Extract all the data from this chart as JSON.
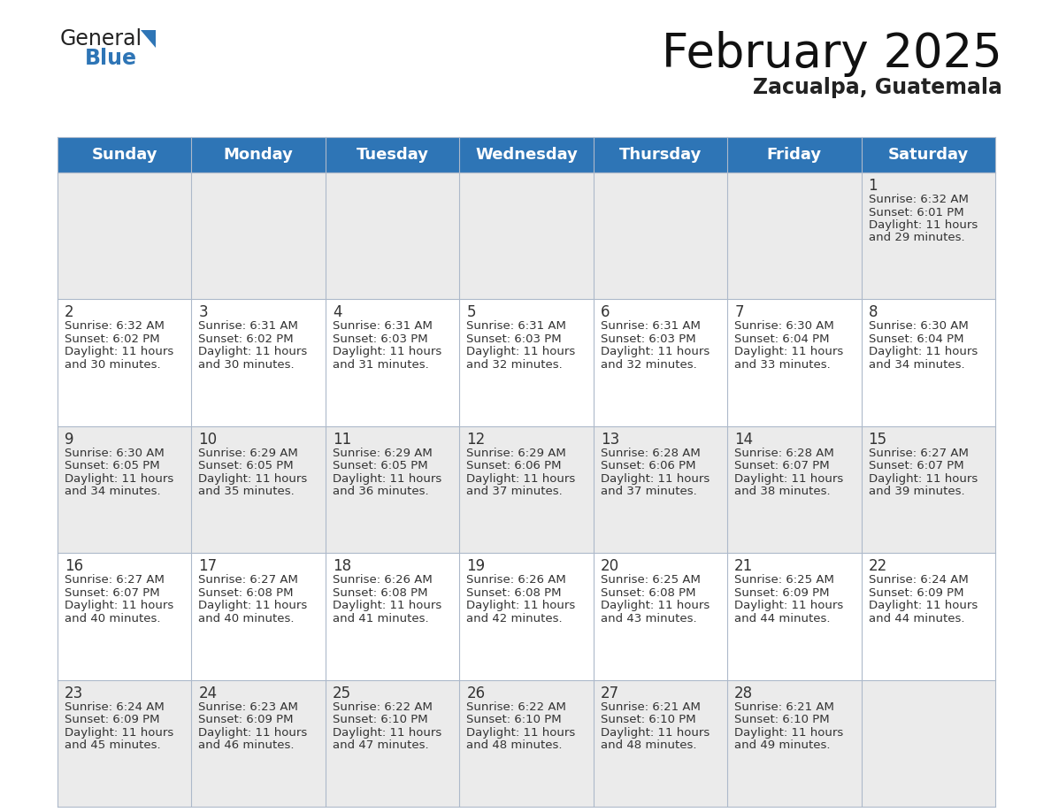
{
  "title": "February 2025",
  "subtitle": "Zacualpa, Guatemala",
  "header_color": "#2e75b6",
  "header_text_color": "#ffffff",
  "background_color": "#ffffff",
  "cell_bg_row0": "#ebebeb",
  "cell_bg_row1": "#ffffff",
  "cell_bg_row2": "#ebebeb",
  "cell_bg_row3": "#ffffff",
  "cell_bg_row4": "#ebebeb",
  "grid_line_color": "#adb9ca",
  "text_color": "#333333",
  "day_headers": [
    "Sunday",
    "Monday",
    "Tuesday",
    "Wednesday",
    "Thursday",
    "Friday",
    "Saturday"
  ],
  "title_fontsize": 38,
  "subtitle_fontsize": 17,
  "header_fontsize": 13,
  "day_num_fontsize": 12,
  "cell_text_fontsize": 9.5,
  "logo_general_fontsize": 17,
  "logo_blue_fontsize": 17,
  "logo_triangle_color": "#2e75b6",
  "logo_general_color": "#222222",
  "logo_blue_color": "#2e75b6",
  "days": [
    {
      "day": 1,
      "col": 6,
      "row": 0,
      "sunrise": "6:32 AM",
      "sunset": "6:01 PM",
      "daylight_hours": 11,
      "daylight_minutes": 29
    },
    {
      "day": 2,
      "col": 0,
      "row": 1,
      "sunrise": "6:32 AM",
      "sunset": "6:02 PM",
      "daylight_hours": 11,
      "daylight_minutes": 30
    },
    {
      "day": 3,
      "col": 1,
      "row": 1,
      "sunrise": "6:31 AM",
      "sunset": "6:02 PM",
      "daylight_hours": 11,
      "daylight_minutes": 30
    },
    {
      "day": 4,
      "col": 2,
      "row": 1,
      "sunrise": "6:31 AM",
      "sunset": "6:03 PM",
      "daylight_hours": 11,
      "daylight_minutes": 31
    },
    {
      "day": 5,
      "col": 3,
      "row": 1,
      "sunrise": "6:31 AM",
      "sunset": "6:03 PM",
      "daylight_hours": 11,
      "daylight_minutes": 32
    },
    {
      "day": 6,
      "col": 4,
      "row": 1,
      "sunrise": "6:31 AM",
      "sunset": "6:03 PM",
      "daylight_hours": 11,
      "daylight_minutes": 32
    },
    {
      "day": 7,
      "col": 5,
      "row": 1,
      "sunrise": "6:30 AM",
      "sunset": "6:04 PM",
      "daylight_hours": 11,
      "daylight_minutes": 33
    },
    {
      "day": 8,
      "col": 6,
      "row": 1,
      "sunrise": "6:30 AM",
      "sunset": "6:04 PM",
      "daylight_hours": 11,
      "daylight_minutes": 34
    },
    {
      "day": 9,
      "col": 0,
      "row": 2,
      "sunrise": "6:30 AM",
      "sunset": "6:05 PM",
      "daylight_hours": 11,
      "daylight_minutes": 34
    },
    {
      "day": 10,
      "col": 1,
      "row": 2,
      "sunrise": "6:29 AM",
      "sunset": "6:05 PM",
      "daylight_hours": 11,
      "daylight_minutes": 35
    },
    {
      "day": 11,
      "col": 2,
      "row": 2,
      "sunrise": "6:29 AM",
      "sunset": "6:05 PM",
      "daylight_hours": 11,
      "daylight_minutes": 36
    },
    {
      "day": 12,
      "col": 3,
      "row": 2,
      "sunrise": "6:29 AM",
      "sunset": "6:06 PM",
      "daylight_hours": 11,
      "daylight_minutes": 37
    },
    {
      "day": 13,
      "col": 4,
      "row": 2,
      "sunrise": "6:28 AM",
      "sunset": "6:06 PM",
      "daylight_hours": 11,
      "daylight_minutes": 37
    },
    {
      "day": 14,
      "col": 5,
      "row": 2,
      "sunrise": "6:28 AM",
      "sunset": "6:07 PM",
      "daylight_hours": 11,
      "daylight_minutes": 38
    },
    {
      "day": 15,
      "col": 6,
      "row": 2,
      "sunrise": "6:27 AM",
      "sunset": "6:07 PM",
      "daylight_hours": 11,
      "daylight_minutes": 39
    },
    {
      "day": 16,
      "col": 0,
      "row": 3,
      "sunrise": "6:27 AM",
      "sunset": "6:07 PM",
      "daylight_hours": 11,
      "daylight_minutes": 40
    },
    {
      "day": 17,
      "col": 1,
      "row": 3,
      "sunrise": "6:27 AM",
      "sunset": "6:08 PM",
      "daylight_hours": 11,
      "daylight_minutes": 40
    },
    {
      "day": 18,
      "col": 2,
      "row": 3,
      "sunrise": "6:26 AM",
      "sunset": "6:08 PM",
      "daylight_hours": 11,
      "daylight_minutes": 41
    },
    {
      "day": 19,
      "col": 3,
      "row": 3,
      "sunrise": "6:26 AM",
      "sunset": "6:08 PM",
      "daylight_hours": 11,
      "daylight_minutes": 42
    },
    {
      "day": 20,
      "col": 4,
      "row": 3,
      "sunrise": "6:25 AM",
      "sunset": "6:08 PM",
      "daylight_hours": 11,
      "daylight_minutes": 43
    },
    {
      "day": 21,
      "col": 5,
      "row": 3,
      "sunrise": "6:25 AM",
      "sunset": "6:09 PM",
      "daylight_hours": 11,
      "daylight_minutes": 44
    },
    {
      "day": 22,
      "col": 6,
      "row": 3,
      "sunrise": "6:24 AM",
      "sunset": "6:09 PM",
      "daylight_hours": 11,
      "daylight_minutes": 44
    },
    {
      "day": 23,
      "col": 0,
      "row": 4,
      "sunrise": "6:24 AM",
      "sunset": "6:09 PM",
      "daylight_hours": 11,
      "daylight_minutes": 45
    },
    {
      "day": 24,
      "col": 1,
      "row": 4,
      "sunrise": "6:23 AM",
      "sunset": "6:09 PM",
      "daylight_hours": 11,
      "daylight_minutes": 46
    },
    {
      "day": 25,
      "col": 2,
      "row": 4,
      "sunrise": "6:22 AM",
      "sunset": "6:10 PM",
      "daylight_hours": 11,
      "daylight_minutes": 47
    },
    {
      "day": 26,
      "col": 3,
      "row": 4,
      "sunrise": "6:22 AM",
      "sunset": "6:10 PM",
      "daylight_hours": 11,
      "daylight_minutes": 48
    },
    {
      "day": 27,
      "col": 4,
      "row": 4,
      "sunrise": "6:21 AM",
      "sunset": "6:10 PM",
      "daylight_hours": 11,
      "daylight_minutes": 48
    },
    {
      "day": 28,
      "col": 5,
      "row": 4,
      "sunrise": "6:21 AM",
      "sunset": "6:10 PM",
      "daylight_hours": 11,
      "daylight_minutes": 49
    }
  ]
}
